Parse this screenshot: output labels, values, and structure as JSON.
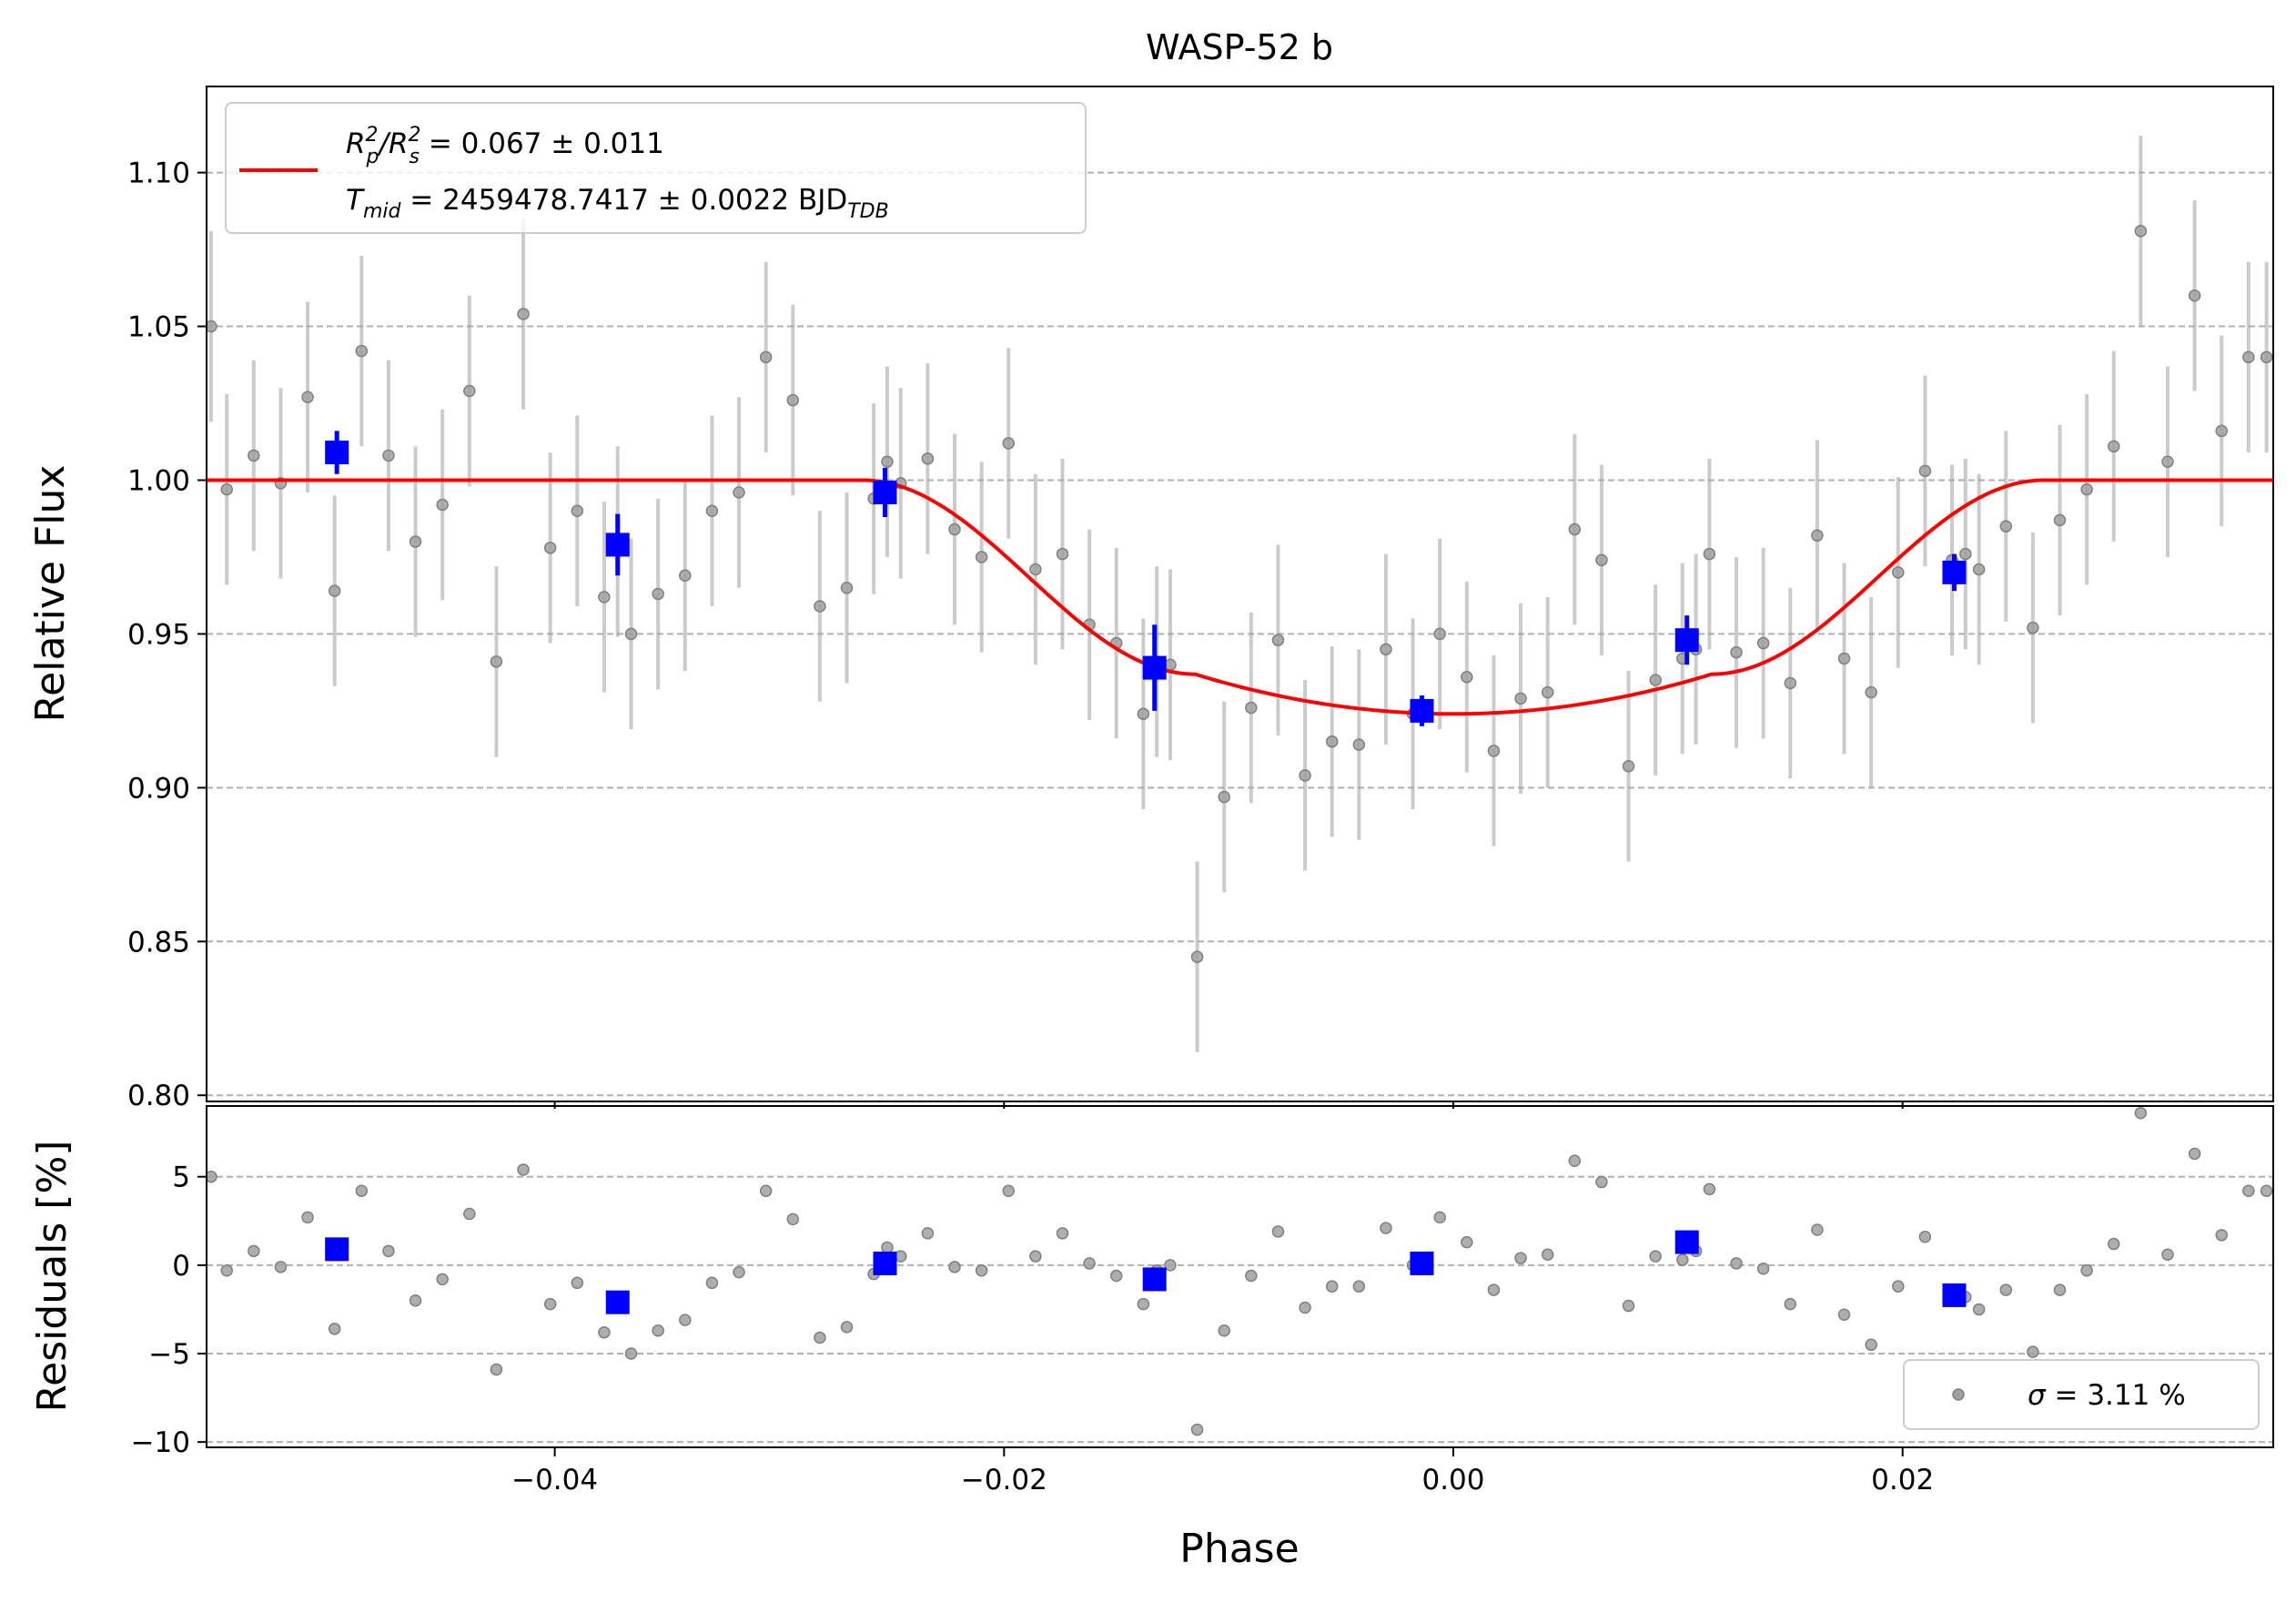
{
  "chart_data": [
    {
      "type": "scatter",
      "panel": "light-curve",
      "title": "WASP-52 b",
      "xlabel": "",
      "ylabel": "Relative Flux",
      "xlim": [
        -0.0555,
        0.0365
      ],
      "ylim": [
        0.798,
        1.128
      ],
      "xticks": [
        -0.04,
        -0.02,
        0.0,
        0.02
      ],
      "xtick_labels": [
        "−0.04",
        "−0.02",
        "0.00",
        "0.02"
      ],
      "yticks": [
        0.8,
        0.85,
        0.9,
        0.95,
        1.0,
        1.05,
        1.1
      ],
      "ytick_labels": [
        "0.80",
        "0.85",
        "0.90",
        "0.95",
        "1.00",
        "1.05",
        "1.10"
      ],
      "grid": "horizontal-dashed",
      "legend": {
        "placement": "top-left",
        "line1_prefix": "R",
        "line1_sub1": "p",
        "line1_mid": "/R",
        "line1_sub2": "s",
        "line1_sup": "2",
        "line1_value": " = 0.067 ± 0.011",
        "line2_prefix": "T",
        "line2_sub": "mid",
        "line2_value": " = 2459478.7417 ± 0.0022 BJD",
        "line2_unit_sub": "TDB"
      },
      "model": {
        "color": "#ff0000",
        "baseline": 1.0,
        "depth_min": 0.924,
        "t_mid": 0.0,
        "ingress_start": -0.0263,
        "ingress_end": -0.0115,
        "egress_start": 0.0115,
        "egress_end": 0.0263
      },
      "raw_points": {
        "color": "#808080",
        "error": 0.031,
        "x": [
          -0.0553,
          -0.0546,
          -0.0534,
          -0.0522,
          -0.051,
          -0.0498,
          -0.0486,
          -0.0474,
          -0.0462,
          -0.045,
          -0.0438,
          -0.0426,
          -0.0414,
          -0.0402,
          -0.039,
          -0.0378,
          -0.0372,
          -0.0366,
          -0.0354,
          -0.0342,
          -0.033,
          -0.0318,
          -0.0306,
          -0.0294,
          -0.0282,
          -0.027,
          -0.0258,
          -0.0252,
          -0.0246,
          -0.0234,
          -0.0222,
          -0.021,
          -0.0198,
          -0.0186,
          -0.0174,
          -0.0162,
          -0.015,
          -0.0138,
          -0.0132,
          -0.0126,
          -0.0114,
          -0.0102,
          -0.009,
          -0.0078,
          -0.0066,
          -0.0054,
          -0.0042,
          -0.003,
          -0.0018,
          -0.0006,
          0.0006,
          0.0018,
          0.003,
          0.0042,
          0.0054,
          0.0066,
          0.0078,
          0.009,
          0.0102,
          0.0108,
          0.0114,
          0.0126,
          0.0138,
          0.015,
          0.0162,
          0.0174,
          0.0186,
          0.0198,
          0.021,
          0.0222,
          0.0228,
          0.0234,
          0.0246,
          0.0258,
          0.027,
          0.0282,
          0.0294,
          0.0306,
          0.0318,
          0.033,
          0.0342,
          0.0354,
          0.0362
        ],
        "y": [
          1.05,
          0.997,
          1.008,
          0.999,
          1.027,
          0.964,
          1.042,
          1.008,
          0.98,
          0.992,
          1.029,
          0.941,
          1.054,
          0.978,
          0.99,
          0.962,
          0.98,
          0.95,
          0.963,
          0.969,
          0.99,
          0.996,
          1.04,
          1.026,
          0.959,
          0.965,
          0.994,
          1.006,
          0.999,
          1.007,
          0.984,
          0.975,
          1.012,
          0.971,
          0.976,
          0.953,
          0.947,
          0.924,
          0.941,
          0.94,
          0.845,
          0.897,
          0.926,
          0.948,
          0.904,
          0.915,
          0.914,
          0.945,
          0.924,
          0.95,
          0.936,
          0.912,
          0.929,
          0.931,
          0.984,
          0.974,
          0.907,
          0.935,
          0.942,
          0.945,
          0.976,
          0.944,
          0.947,
          0.934,
          0.982,
          0.942,
          0.931,
          0.97,
          1.003,
          0.974,
          0.976,
          0.971,
          0.985,
          0.952,
          0.987,
          0.997,
          1.011,
          1.081,
          1.006,
          1.06,
          1.016,
          1.04,
          1.04
        ]
      },
      "binned_points": {
        "color": "#0000ff",
        "x": [
          -0.0497,
          -0.0372,
          -0.0253,
          -0.0133,
          -0.0014,
          0.0104,
          0.0223
        ],
        "y": [
          1.009,
          0.979,
          0.996,
          0.939,
          0.925,
          0.948,
          0.97
        ],
        "yerr": [
          0.007,
          0.01,
          0.008,
          0.014,
          0.005,
          0.008,
          0.006
        ]
      }
    },
    {
      "type": "scatter",
      "panel": "residuals",
      "title": "",
      "xlabel": "Phase",
      "ylabel": "Residuals [%]",
      "xlim": [
        -0.0555,
        0.0365
      ],
      "ylim": [
        -10.3,
        9.0
      ],
      "xticks": [
        -0.04,
        -0.02,
        0.0,
        0.02
      ],
      "xtick_labels": [
        "−0.04",
        "−0.02",
        "0.00",
        "0.02"
      ],
      "yticks": [
        -10,
        -5,
        0,
        5
      ],
      "ytick_labels": [
        "−10",
        "−5",
        "0",
        "5"
      ],
      "grid": "horizontal-dashed",
      "legend": {
        "placement": "bottom-right",
        "sigma_symbol": "σ",
        "sigma_text": " = 3.11 %"
      },
      "raw_points": {
        "color": "#808080",
        "x": [
          -0.0553,
          -0.0546,
          -0.0534,
          -0.0522,
          -0.051,
          -0.0498,
          -0.0486,
          -0.0474,
          -0.0462,
          -0.045,
          -0.0438,
          -0.0426,
          -0.0414,
          -0.0402,
          -0.039,
          -0.0378,
          -0.0372,
          -0.0366,
          -0.0354,
          -0.0342,
          -0.033,
          -0.0318,
          -0.0306,
          -0.0294,
          -0.0282,
          -0.027,
          -0.0258,
          -0.0252,
          -0.0246,
          -0.0234,
          -0.0222,
          -0.021,
          -0.0198,
          -0.0186,
          -0.0174,
          -0.0162,
          -0.015,
          -0.0138,
          -0.0132,
          -0.0126,
          -0.0114,
          -0.0102,
          -0.009,
          -0.0078,
          -0.0066,
          -0.0054,
          -0.0042,
          -0.003,
          -0.0018,
          -0.0006,
          0.0006,
          0.0018,
          0.003,
          0.0042,
          0.0054,
          0.0066,
          0.0078,
          0.009,
          0.0102,
          0.0108,
          0.0114,
          0.0126,
          0.0138,
          0.015,
          0.0162,
          0.0174,
          0.0186,
          0.0198,
          0.021,
          0.0222,
          0.0228,
          0.0234,
          0.0246,
          0.0258,
          0.027,
          0.0282,
          0.0294,
          0.0306,
          0.0318,
          0.033,
          0.0342,
          0.0354,
          0.0362
        ],
        "y": [
          5.0,
          -0.3,
          0.8,
          -0.1,
          2.7,
          -3.6,
          4.2,
          0.8,
          -2.0,
          -0.8,
          2.9,
          -5.9,
          5.4,
          -2.2,
          -1.0,
          -3.8,
          -2.0,
          -5.0,
          -3.7,
          -3.1,
          -1.0,
          -0.4,
          4.2,
          2.6,
          -4.1,
          -3.5,
          -0.5,
          1.0,
          0.5,
          1.8,
          -0.1,
          -0.3,
          4.2,
          0.5,
          1.8,
          0.1,
          -0.6,
          -2.2,
          -0.3,
          0.0,
          -9.3,
          -3.7,
          -0.6,
          1.9,
          -2.4,
          -1.2,
          -1.2,
          2.1,
          0.0,
          2.7,
          1.3,
          -1.4,
          0.4,
          0.6,
          5.9,
          4.7,
          -2.3,
          0.5,
          0.3,
          0.8,
          4.3,
          0.1,
          -0.2,
          -2.2,
          2.0,
          -2.8,
          -4.5,
          -1.2,
          1.6,
          -1.6,
          -1.8,
          -2.5,
          -1.4,
          -4.9,
          -1.4,
          -0.3,
          1.2,
          8.6,
          0.6,
          6.3,
          1.7,
          4.2,
          4.2
        ]
      },
      "binned_points": {
        "color": "#0000ff",
        "x": [
          -0.0497,
          -0.0372,
          -0.0253,
          -0.0133,
          -0.0014,
          0.0104,
          0.0223
        ],
        "y": [
          0.9,
          -2.1,
          0.1,
          -0.8,
          0.1,
          1.3,
          -1.7
        ]
      }
    }
  ]
}
